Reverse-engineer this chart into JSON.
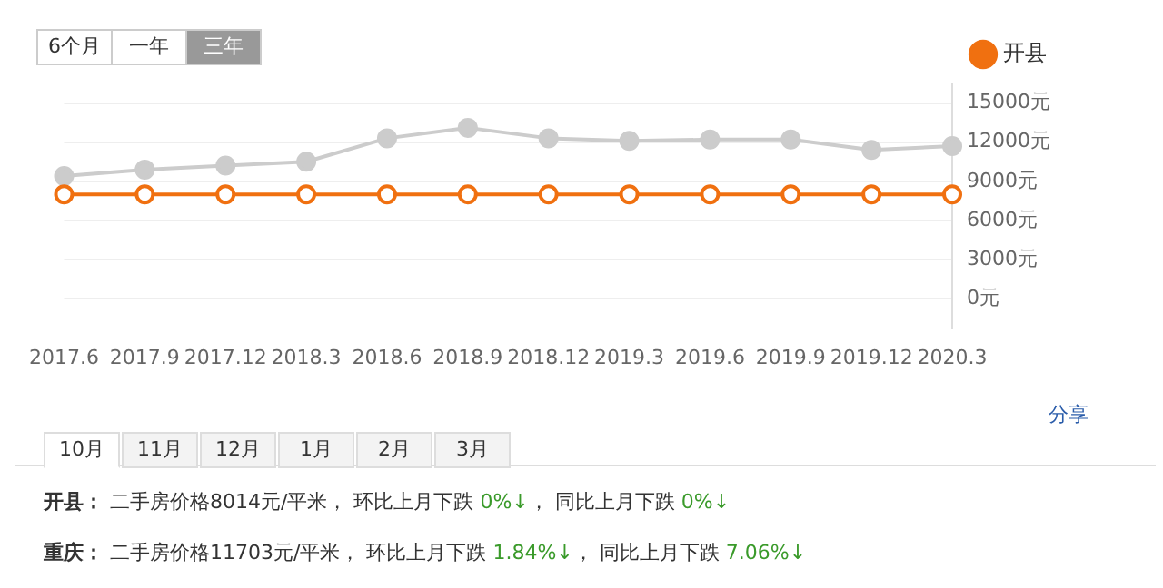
{
  "chart_data": {
    "type": "line",
    "categories": [
      "2017.6",
      "2017.9",
      "2017.12",
      "2018.3",
      "2018.6",
      "2018.9",
      "2018.12",
      "2019.3",
      "2019.6",
      "2019.9",
      "2019.12",
      "2020.3"
    ],
    "series": [
      {
        "name": "开县",
        "color": "#f07010",
        "values": [
          8000,
          8000,
          8000,
          8000,
          8000,
          8000,
          8000,
          8000,
          8000,
          8000,
          8000,
          8000
        ]
      },
      {
        "color": "#cccccc",
        "values": [
          9400,
          9900,
          10200,
          10500,
          12300,
          13100,
          12300,
          12100,
          12200,
          12200,
          11400,
          11700
        ]
      }
    ],
    "ylim": [
      -2250,
      16500
    ],
    "yticks": [
      {
        "value": 0,
        "label": "0元"
      },
      {
        "value": 3000,
        "label": "3000元"
      },
      {
        "value": 6000,
        "label": "6000元"
      },
      {
        "value": 9000,
        "label": "9000元"
      },
      {
        "value": 12000,
        "label": "12000元"
      },
      {
        "value": 15000,
        "label": "15000元"
      }
    ],
    "grid": "y",
    "legend": "top right",
    "marker": "circle",
    "line_style": "solid",
    "annotations": [
      "6个月",
      "一年",
      "三年",
      "分享",
      "10月",
      "11月",
      "12月",
      "1月",
      "2月",
      "3月",
      "开县：",
      "二手房价格8014元/平米， 环比上月下跌 0%↓， 同比上月下跌 0%↓",
      "重庆：",
      "二手房价格11703元/平米， 环比上月下跌 1.84%↓， 同比上月下跌 7.06%↓"
    ]
  }
}
